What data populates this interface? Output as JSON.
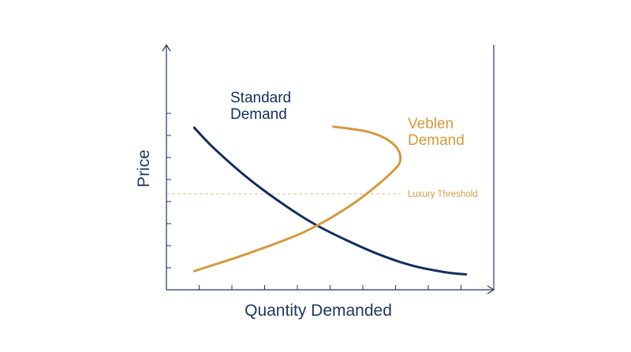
{
  "chart_data": {
    "type": "line",
    "title": "",
    "xlabel": "Quantity Demanded",
    "ylabel": "Price",
    "xlim": [
      0,
      10
    ],
    "ylim": [
      0,
      10
    ],
    "grid": false,
    "legend": "inline labels",
    "x_ticks": [
      1,
      2,
      3,
      4,
      5,
      6,
      7,
      8,
      9
    ],
    "y_ticks": [
      1,
      2,
      3,
      4,
      5,
      6,
      7,
      8
    ],
    "series": [
      {
        "name": "Standard Demand",
        "color": "#132d5e",
        "label_lines": [
          "Standard",
          "Demand"
        ],
        "x": [
          0.85,
          1.5,
          2.5,
          3.5,
          4.5,
          5.5,
          6.5,
          7.5,
          8.5,
          9.15
        ],
        "y": [
          7.35,
          6.35,
          5.05,
          3.95,
          3.0,
          2.25,
          1.6,
          1.1,
          0.8,
          0.7
        ]
      },
      {
        "name": "Veblen Demand",
        "color": "#d49a3d",
        "label_lines": [
          "Veblen",
          "Demand"
        ],
        "x": [
          0.85,
          2.5,
          4.25,
          5.7,
          6.9,
          7.15,
          6.9,
          6.2,
          5.1
        ],
        "y": [
          0.85,
          1.65,
          2.65,
          3.9,
          5.35,
          6.0,
          6.65,
          7.15,
          7.4
        ]
      }
    ],
    "annotations": [
      {
        "type": "hline",
        "y": 4.35,
        "label": "Luxury Threshold",
        "color": "#d49a3d"
      }
    ]
  }
}
